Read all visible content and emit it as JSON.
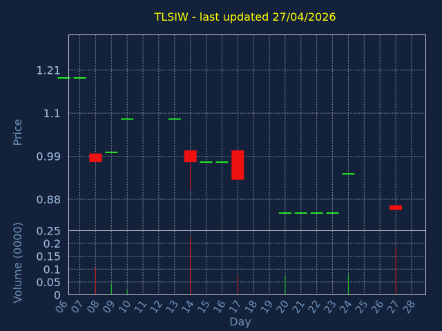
{
  "chart_data": [
    {
      "type": "candlestick",
      "title": "TLSIW - last updated 27/04/2026",
      "ylabel": "Price",
      "ylim": [
        0.8,
        1.3
      ],
      "yticks": [
        "1.21",
        "1.1",
        "0.99",
        "0.88"
      ],
      "candles": [
        {
          "day": "06",
          "open": 1.19,
          "high": 1.19,
          "low": 1.19,
          "close": 1.19
        },
        {
          "day": "07",
          "open": 1.19,
          "high": 1.19,
          "low": 1.19,
          "close": 1.19
        },
        {
          "day": "08",
          "open": 0.997,
          "high": 0.997,
          "low": 0.975,
          "close": 0.975
        },
        {
          "day": "09",
          "open": 1.0,
          "high": 1.0,
          "low": 1.0,
          "close": 1.0
        },
        {
          "day": "10",
          "open": 1.085,
          "high": 1.085,
          "low": 1.085,
          "close": 1.085
        },
        {
          "day": "13",
          "open": 1.085,
          "high": 1.085,
          "low": 1.085,
          "close": 1.085
        },
        {
          "day": "14",
          "open": 1.005,
          "high": 1.005,
          "low": 0.905,
          "close": 0.975
        },
        {
          "day": "15",
          "open": 0.975,
          "high": 0.975,
          "low": 0.975,
          "close": 0.975
        },
        {
          "day": "16",
          "open": 0.975,
          "high": 0.975,
          "low": 0.975,
          "close": 0.975
        },
        {
          "day": "17",
          "open": 1.005,
          "high": 1.005,
          "low": 0.93,
          "close": 0.93
        },
        {
          "day": "20",
          "open": 0.845,
          "high": 0.845,
          "low": 0.845,
          "close": 0.845
        },
        {
          "day": "21",
          "open": 0.845,
          "high": 0.845,
          "low": 0.845,
          "close": 0.845
        },
        {
          "day": "22",
          "open": 0.845,
          "high": 0.845,
          "low": 0.845,
          "close": 0.845
        },
        {
          "day": "23",
          "open": 0.845,
          "high": 0.845,
          "low": 0.845,
          "close": 0.845
        },
        {
          "day": "24",
          "open": 0.945,
          "high": 0.945,
          "low": 0.945,
          "close": 0.945
        },
        {
          "day": "27",
          "open": 0.865,
          "high": 0.865,
          "low": 0.853,
          "close": 0.853
        }
      ]
    },
    {
      "type": "bar",
      "ylabel": "Volume (0000)",
      "xlabel": "Day",
      "ylim": [
        0,
        0.25
      ],
      "yticks": [
        "0.25",
        "0.2",
        "0.15",
        "0.1",
        "0.05",
        "0"
      ],
      "categories": [
        "06",
        "07",
        "08",
        "09",
        "10",
        "11",
        "12",
        "13",
        "14",
        "15",
        "16",
        "17",
        "18",
        "19",
        "20",
        "21",
        "22",
        "23",
        "24",
        "25",
        "26",
        "27",
        "28"
      ],
      "volumes": [
        {
          "day": "08",
          "value": 0.105,
          "color": "#d81818"
        },
        {
          "day": "09",
          "value": 0.045,
          "color": "#22cc22"
        },
        {
          "day": "10",
          "value": 0.02,
          "color": "#22cc22"
        },
        {
          "day": "14",
          "value": 0.225,
          "color": "#d81818"
        },
        {
          "day": "17",
          "value": 0.075,
          "color": "#d81818"
        },
        {
          "day": "20",
          "value": 0.075,
          "color": "#22cc22"
        },
        {
          "day": "24",
          "value": 0.08,
          "color": "#22cc22"
        },
        {
          "day": "27",
          "value": 0.185,
          "color": "#d81818"
        }
      ]
    }
  ],
  "colors": {
    "background": "#13223a",
    "up": "#22ee22",
    "down": "#ee1111",
    "title": "#ffff00"
  }
}
